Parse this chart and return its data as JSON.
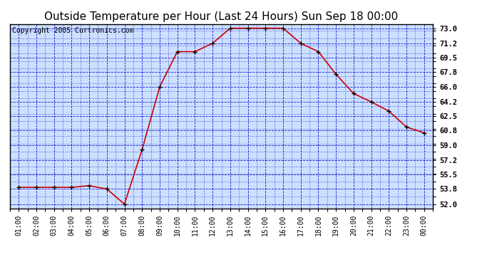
{
  "title": "Outside Temperature per Hour (Last 24 Hours) Sun Sep 18 00:00",
  "copyright": "Copyright 2005 Curtronics.com",
  "hours": [
    "01:00",
    "02:00",
    "03:00",
    "04:00",
    "05:00",
    "06:00",
    "07:00",
    "08:00",
    "09:00",
    "10:00",
    "11:00",
    "12:00",
    "13:00",
    "14:00",
    "15:00",
    "16:00",
    "17:00",
    "18:00",
    "19:00",
    "20:00",
    "21:00",
    "22:00",
    "23:00",
    "00:00"
  ],
  "temps": [
    54.0,
    54.0,
    54.0,
    54.0,
    54.2,
    53.8,
    52.0,
    58.5,
    66.0,
    70.2,
    70.2,
    71.2,
    73.0,
    73.0,
    73.0,
    73.0,
    71.2,
    70.2,
    67.5,
    65.2,
    64.2,
    63.1,
    61.2,
    60.5
  ],
  "line_color": "#cc0000",
  "marker_color": "#000000",
  "bg_color": "#cce0ff",
  "grid_color": "#0000cc",
  "border_color": "#000000",
  "outer_bg": "#ffffff",
  "title_fontsize": 11,
  "copyright_fontsize": 7,
  "ytick_labels": [
    "52.0",
    "53.8",
    "55.5",
    "57.2",
    "59.0",
    "60.8",
    "62.5",
    "64.2",
    "66.0",
    "67.8",
    "69.5",
    "71.2",
    "73.0"
  ],
  "ytick_values": [
    52.0,
    53.8,
    55.5,
    57.2,
    59.0,
    60.8,
    62.5,
    64.2,
    66.0,
    67.8,
    69.5,
    71.2,
    73.0
  ],
  "ylim": [
    51.5,
    73.5
  ],
  "figsize": [
    6.9,
    3.75
  ],
  "dpi": 100
}
